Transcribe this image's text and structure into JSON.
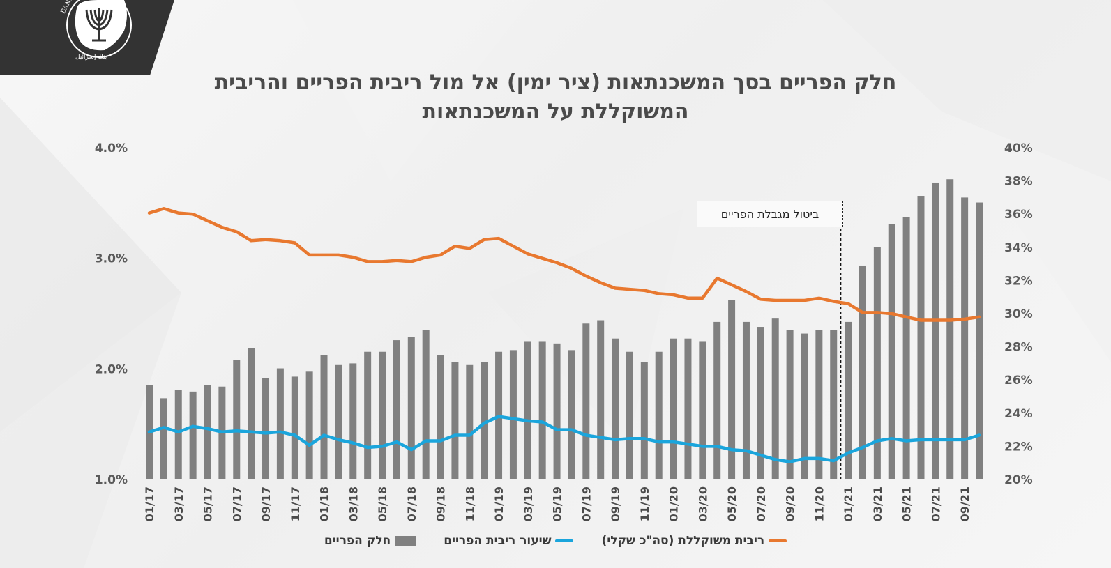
{
  "logo": {
    "text": "BANK OF ISRAEL",
    "name": "bank-of-israel-logo"
  },
  "title": {
    "line1": "חלק הפריים בסך המשכנתאות (ציר ימין) אל מול ריבית הפריים והריבית",
    "line2": "המשוקללת על המשכנתאות"
  },
  "annotation": "ביטול מגבלת הפריים",
  "colors": {
    "bars": "#808080",
    "prime_rate": "#1AA5DC",
    "weighted_rate": "#E8782F",
    "title": "#4a4a4a"
  },
  "legend": [
    {
      "label": "ריבית משוקללת (סה\"כ שקלי)",
      "key": "weighted_rate"
    },
    {
      "label": "שיעור ריבית הפריים",
      "key": "prime_rate"
    },
    {
      "label": "חלק הפריים",
      "key": "bars"
    }
  ],
  "chart_data": {
    "type": "bar",
    "title": "חלק הפריים בסך המשכנתאות (ציר ימין) אל מול ריבית הפריים והריבית המשוקללת על המשכנתאות",
    "y_left": {
      "min": 1.0,
      "max": 4.0,
      "ticks": [
        "4.0%",
        "3.0%",
        "2.0%",
        "1.0%"
      ]
    },
    "y_right": {
      "min": 20,
      "max": 40,
      "ticks": [
        "40%",
        "38%",
        "36%",
        "34%",
        "32%",
        "30%",
        "28%",
        "26%",
        "24%",
        "22%",
        "20%"
      ]
    },
    "categories": [
      "01/17",
      "02/17",
      "03/17",
      "04/17",
      "05/17",
      "06/17",
      "07/17",
      "08/17",
      "09/17",
      "10/17",
      "11/17",
      "12/17",
      "01/18",
      "02/18",
      "03/18",
      "04/18",
      "05/18",
      "06/18",
      "07/18",
      "08/18",
      "09/18",
      "10/18",
      "11/18",
      "12/18",
      "01/19",
      "02/19",
      "03/19",
      "04/19",
      "05/19",
      "06/19",
      "07/19",
      "08/19",
      "09/19",
      "10/19",
      "11/19",
      "12/19",
      "01/20",
      "02/20",
      "03/20",
      "04/20",
      "05/20",
      "06/20",
      "07/20",
      "08/20",
      "09/20",
      "10/20",
      "11/20",
      "12/20",
      "01/21",
      "02/21",
      "03/21",
      "04/21",
      "05/21",
      "06/21",
      "07/21",
      "08/21",
      "09/21",
      "10/21"
    ],
    "x_tick_labels": [
      "01/17",
      "03/17",
      "05/17",
      "07/17",
      "09/17",
      "11/17",
      "01/18",
      "03/18",
      "05/18",
      "07/18",
      "09/18",
      "11/18",
      "01/19",
      "03/19",
      "05/19",
      "07/19",
      "09/19",
      "11/19",
      "01/20",
      "03/20",
      "05/20",
      "07/20",
      "09/20",
      "11/20",
      "01/21",
      "03/21",
      "05/21",
      "07/21",
      "09/21"
    ],
    "series": [
      {
        "name": "חלק הפריים",
        "axis": "right",
        "type": "bar",
        "color": "#808080",
        "values": [
          25.7,
          24.9,
          25.4,
          25.3,
          25.7,
          25.6,
          27.2,
          27.9,
          26.1,
          26.7,
          26.2,
          26.5,
          27.5,
          26.9,
          27.0,
          27.7,
          27.7,
          28.4,
          28.6,
          29.0,
          27.5,
          27.1,
          26.9,
          27.1,
          27.7,
          27.8,
          28.3,
          28.3,
          28.2,
          27.8,
          29.4,
          29.6,
          28.5,
          27.7,
          27.1,
          27.7,
          28.5,
          28.5,
          28.3,
          29.5,
          30.8,
          29.5,
          29.2,
          29.7,
          29.0,
          28.8,
          29.0,
          29.0,
          29.5,
          32.9,
          34.0,
          35.4,
          35.8,
          37.1,
          37.9,
          38.1,
          37.0,
          36.7
        ]
      },
      {
        "name": "שיעור ריבית הפריים",
        "axis": "left",
        "type": "line",
        "color": "#1AA5DC",
        "values": [
          1.43,
          1.47,
          1.43,
          1.48,
          1.46,
          1.43,
          1.44,
          1.43,
          1.42,
          1.43,
          1.4,
          1.31,
          1.4,
          1.36,
          1.33,
          1.29,
          1.3,
          1.34,
          1.27,
          1.35,
          1.35,
          1.4,
          1.4,
          1.51,
          1.57,
          1.55,
          1.53,
          1.52,
          1.45,
          1.45,
          1.4,
          1.38,
          1.36,
          1.37,
          1.37,
          1.34,
          1.34,
          1.32,
          1.3,
          1.3,
          1.27,
          1.26,
          1.22,
          1.18,
          1.16,
          1.19,
          1.19,
          1.17,
          1.24,
          1.29,
          1.35,
          1.37,
          1.35,
          1.36,
          1.36,
          1.36,
          1.36,
          1.4
        ]
      },
      {
        "name": "ריבית משוקללת (סה\"כ שקלי)",
        "axis": "left",
        "type": "line",
        "color": "#E8782F",
        "values": [
          3.41,
          3.45,
          3.41,
          3.4,
          3.34,
          3.28,
          3.24,
          3.16,
          3.17,
          3.16,
          3.14,
          3.03,
          3.03,
          3.03,
          3.01,
          2.97,
          2.97,
          2.98,
          2.97,
          3.01,
          3.03,
          3.11,
          3.09,
          3.17,
          3.18,
          3.11,
          3.04,
          3.0,
          2.96,
          2.91,
          2.84,
          2.78,
          2.73,
          2.72,
          2.71,
          2.68,
          2.67,
          2.64,
          2.64,
          2.82,
          2.76,
          2.7,
          2.63,
          2.62,
          2.62,
          2.62,
          2.64,
          2.61,
          2.59,
          2.51,
          2.51,
          2.5,
          2.47,
          2.44,
          2.44,
          2.44,
          2.45,
          2.47
        ]
      }
    ],
    "annotations": [
      {
        "text": "ביטול מגבלת הפריים",
        "x": "12/20"
      }
    ],
    "grid": false,
    "legend_position": "bottom"
  }
}
